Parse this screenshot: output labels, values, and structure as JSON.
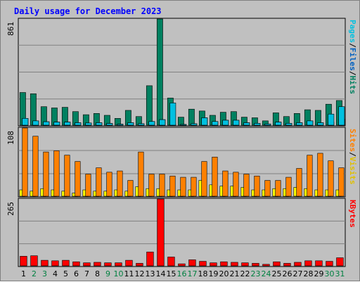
{
  "chart_data": {
    "type": "bar",
    "title": "Daily usage for December 2023",
    "categories": [
      "1",
      "2",
      "3",
      "4",
      "5",
      "6",
      "7",
      "8",
      "9",
      "10",
      "11",
      "12",
      "13",
      "14",
      "15",
      "16",
      "17",
      "18",
      "19",
      "20",
      "21",
      "22",
      "23",
      "24",
      "25",
      "26",
      "27",
      "28",
      "29",
      "30",
      "31"
    ],
    "weekend_days": [
      "2",
      "3",
      "9",
      "10",
      "16",
      "17",
      "23",
      "24",
      "30",
      "31"
    ],
    "panels": [
      {
        "id": "hits-panel",
        "ymax_label": "861",
        "ymax": 861,
        "right_labels": [
          {
            "text": "Hits",
            "color": "#008060"
          },
          {
            "text": "/",
            "color": "#000000"
          },
          {
            "text": "Files",
            "color": "#0060c0"
          },
          {
            "text": "/",
            "color": "#000000"
          },
          {
            "text": "Pages",
            "color": "#00c0e0"
          }
        ],
        "series": [
          {
            "name": "Hits",
            "color": "#008060",
            "values": [
              265,
              255,
              150,
              140,
              145,
              110,
              85,
              95,
              80,
              55,
              120,
              70,
              320,
              861,
              220,
              65,
              130,
              115,
              80,
              105,
              110,
              65,
              60,
              35,
              100,
              70,
              95,
              125,
              120,
              170,
              200
            ]
          },
          {
            "name": "Files",
            "color": "#0060c0",
            "values": [
              55,
              35,
              28,
              25,
              25,
              20,
              18,
              20,
              14,
              8,
              20,
              12,
              30,
              45,
              10,
              6,
              12,
              60,
              30,
              40,
              40,
              20,
              15,
              10,
              25,
              15,
              20,
              35,
              20,
              25,
              50
            ]
          },
          {
            "name": "Pages",
            "color": "#00c0e0",
            "values": [
              55,
              35,
              28,
              25,
              25,
              20,
              18,
              20,
              14,
              8,
              20,
              12,
              30,
              45,
              180,
              6,
              12,
              60,
              30,
              40,
              40,
              20,
              15,
              10,
              25,
              15,
              20,
              35,
              20,
              90,
              150
            ]
          }
        ]
      },
      {
        "id": "visits-panel",
        "ymax_label": "108",
        "ymax": 108,
        "right_labels": [
          {
            "text": "Visits",
            "color": "#e0c000"
          },
          {
            "text": "/",
            "color": "#000000"
          },
          {
            "text": "Sites",
            "color": "#ff8000"
          }
        ],
        "series": [
          {
            "name": "Visits",
            "color": "#ffff00",
            "values": [
              10,
              8,
              12,
              10,
              8,
              5,
              10,
              8,
              8,
              10,
              8,
              15,
              12,
              12,
              10,
              10,
              10,
              25,
              18,
              16,
              16,
              14,
              10,
              10,
              12,
              12,
              14,
              12,
              10,
              10,
              10
            ]
          },
          {
            "name": "Sites",
            "color": "#ff8000",
            "values": [
              108,
              95,
              70,
              72,
              65,
              55,
              35,
              45,
              38,
              40,
              25,
              70,
              35,
              35,
              32,
              30,
              30,
              55,
              62,
              40,
              38,
              35,
              32,
              25,
              25,
              30,
              44,
              65,
              68,
              56,
              45
            ]
          }
        ]
      },
      {
        "id": "kbytes-panel",
        "ymax_label": "265",
        "ymax": 265,
        "right_labels": [
          {
            "text": "KBytes",
            "color": "#ff0000"
          }
        ],
        "series": [
          {
            "name": "KBytes",
            "color": "#ff0000",
            "values": [
              38,
              40,
              22,
              20,
              22,
              16,
              12,
              14,
              12,
              12,
              22,
              10,
              55,
              265,
              35,
              8,
              24,
              18,
              12,
              16,
              14,
              12,
              10,
              6,
              16,
              10,
              14,
              20,
              20,
              18,
              32
            ]
          }
        ]
      }
    ]
  },
  "colors": {
    "title": "#0000ff",
    "background": "#c0c0c0",
    "grid": "#808080",
    "weekday_label": "#000000",
    "weekend_label": "#008040"
  }
}
